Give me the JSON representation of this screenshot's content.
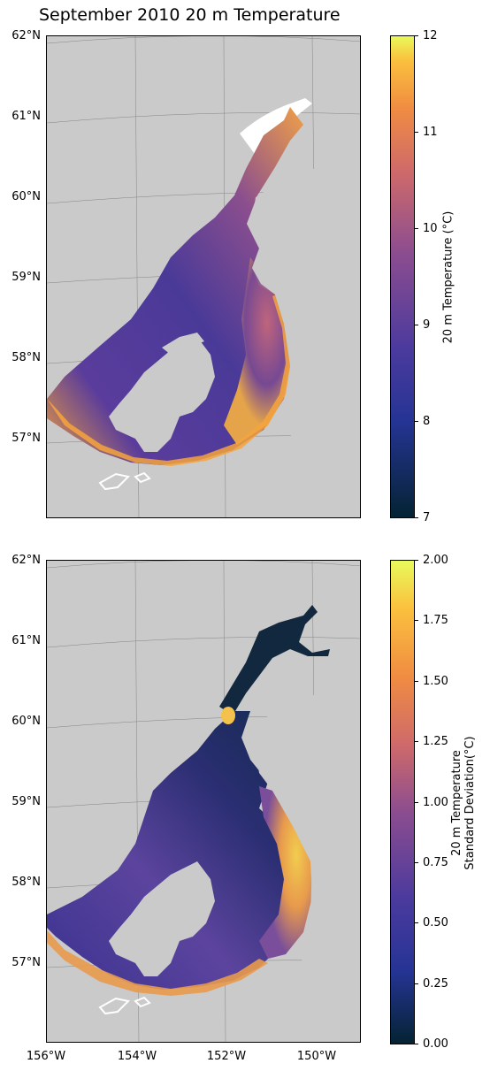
{
  "title": "September 2010 20 m Temperature",
  "lat_labels": [
    "62°N",
    "61°N",
    "60°N",
    "59°N",
    "58°N",
    "57°N"
  ],
  "lon_labels": [
    "156°W",
    "154°W",
    "152°W",
    "150°W"
  ],
  "panels": [
    {
      "colorbar": {
        "label_line1": "20 m Temperature (°C)",
        "label_line2": "",
        "ticks": [
          "12",
          "11",
          "10",
          "9",
          "8",
          "7"
        ],
        "colormap": "thermal",
        "range": [
          7,
          12
        ]
      },
      "field_colors": {
        "inlet": "#4c3a9c",
        "upper_inlet": "#a85a84",
        "head": "#f0a048",
        "shelf_edge": "#f6a43c",
        "offshore_mix": "#8a4e8e"
      }
    },
    {
      "colorbar": {
        "label_line1": "20 m Temperature",
        "label_line2": "Standard Deviation(°C)",
        "ticks": [
          "2.00",
          "1.75",
          "1.50",
          "1.25",
          "1.00",
          "0.75",
          "0.50",
          "0.25",
          "0.00"
        ],
        "colormap": "thermal",
        "range": [
          0,
          2
        ]
      },
      "field_colors": {
        "inlet": "#3a3390",
        "upper_inlet": "#132a4e",
        "head": "#0f2a3e",
        "shelf_edge": "#f4c24c",
        "offshore_mix": "#6c4c9c"
      }
    }
  ]
}
